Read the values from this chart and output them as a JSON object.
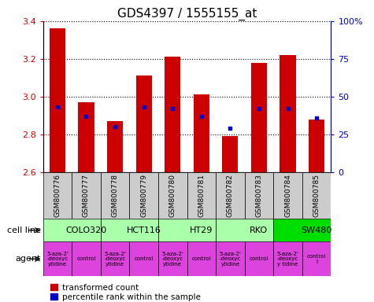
{
  "title": "GDS4397 / 1555155_at",
  "samples": [
    "GSM800776",
    "GSM800777",
    "GSM800778",
    "GSM800779",
    "GSM800780",
    "GSM800781",
    "GSM800782",
    "GSM800783",
    "GSM800784",
    "GSM800785"
  ],
  "transformed_count": [
    3.36,
    2.97,
    2.87,
    3.11,
    3.21,
    3.01,
    2.79,
    3.18,
    3.22,
    2.88
  ],
  "percentile_rank": [
    43,
    37,
    30,
    43,
    42,
    37,
    29,
    42,
    42,
    36
  ],
  "ylim_left": [
    2.6,
    3.4
  ],
  "ylim_right": [
    0,
    100
  ],
  "yticks_left": [
    2.6,
    2.8,
    3.0,
    3.2,
    3.4
  ],
  "yticks_right": [
    0,
    25,
    50,
    75,
    100
  ],
  "bar_color": "#cc0000",
  "dot_color": "#0000cc",
  "bar_bottom": 2.6,
  "cell_lines": [
    {
      "name": "COLO320",
      "start": 0,
      "end": 2,
      "color": "#aaffaa"
    },
    {
      "name": "HCT116",
      "start": 2,
      "end": 4,
      "color": "#aaffaa"
    },
    {
      "name": "HT29",
      "start": 4,
      "end": 6,
      "color": "#aaffaa"
    },
    {
      "name": "RKO",
      "start": 6,
      "end": 8,
      "color": "#aaffaa"
    },
    {
      "name": "SW480",
      "start": 8,
      "end": 10,
      "color": "#00dd00"
    }
  ],
  "agents": [
    {
      "name": "5-aza-2'\n-deoxyc\nytidine",
      "start": 0,
      "end": 1,
      "is_drug": true
    },
    {
      "name": "control",
      "start": 1,
      "end": 2,
      "is_drug": false
    },
    {
      "name": "5-aza-2'\n-deoxyc\nytidine",
      "start": 2,
      "end": 3,
      "is_drug": true
    },
    {
      "name": "control",
      "start": 3,
      "end": 4,
      "is_drug": false
    },
    {
      "name": "5-aza-2'\n-deoxyc\nytidine",
      "start": 4,
      "end": 5,
      "is_drug": true
    },
    {
      "name": "control",
      "start": 5,
      "end": 6,
      "is_drug": false
    },
    {
      "name": "5-aza-2'\n-deoxyc\nytidine",
      "start": 6,
      "end": 7,
      "is_drug": true
    },
    {
      "name": "control",
      "start": 7,
      "end": 8,
      "is_drug": false
    },
    {
      "name": "5-aza-2'\n-deoxyc\ny tidine",
      "start": 8,
      "end": 9,
      "is_drug": true
    },
    {
      "name": "control\nl",
      "start": 9,
      "end": 10,
      "is_drug": false
    }
  ],
  "drug_color": "#dd44dd",
  "control_color": "#dd44dd",
  "sample_bg_color": "#cccccc",
  "left_axis_color": "#cc0000",
  "right_axis_color": "#0000cc",
  "title_fontsize": 11,
  "tick_fontsize": 8,
  "label_fontsize": 8,
  "sample_label_fontsize": 6.5,
  "agent_fontsize": 5.0,
  "legend_fontsize": 7.5,
  "right_tick_labels": [
    "0",
    "25",
    "50",
    "75",
    "100%"
  ]
}
